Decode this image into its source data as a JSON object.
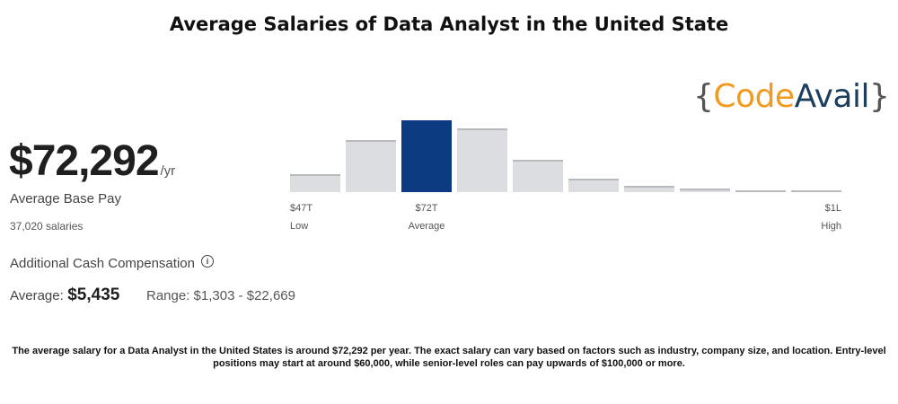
{
  "page": {
    "title": "Average Salaries of Data Analyst  in the United State"
  },
  "logo": {
    "brace_open": "{",
    "code": "Code",
    "avail": "Avail",
    "brace_close": "}"
  },
  "salary": {
    "amount": "$72,292",
    "unit": "/yr",
    "label": "Average Base Pay",
    "count": "37,020 salaries"
  },
  "additional": {
    "title": "Additional Cash Compensation",
    "avg_label": "Average:",
    "avg_value": "$5,435",
    "range_label": "Range: $1,303 - $22,669"
  },
  "chart_data": {
    "type": "bar",
    "categories": [
      "1",
      "2",
      "3",
      "4",
      "5",
      "6",
      "7",
      "8",
      "9",
      "10"
    ],
    "values": [
      20,
      58,
      80,
      71,
      36,
      15,
      7,
      4,
      1,
      1
    ],
    "highlight_index": 2,
    "ylim": [
      0,
      80
    ],
    "tick_labels": [
      {
        "index": 0,
        "value": "$47T",
        "caption": "Low",
        "align": "left"
      },
      {
        "index": 2,
        "value": "$72T",
        "caption": "Average",
        "align": "center"
      },
      {
        "index": 9,
        "value": "$1L",
        "caption": "High",
        "align": "right"
      }
    ],
    "colors": {
      "bar": "#dcdde0",
      "bar_top": "#b8babd",
      "highlight": "#0d3b82"
    }
  },
  "footer": {
    "text": "The average salary for a Data Analyst in the United States is around $72,292 per year. The exact salary can vary based on factors such as industry, company size, and location. Entry-level positions may start at around $60,000, while senior-level roles can pay upwards of $100,000 or more."
  }
}
